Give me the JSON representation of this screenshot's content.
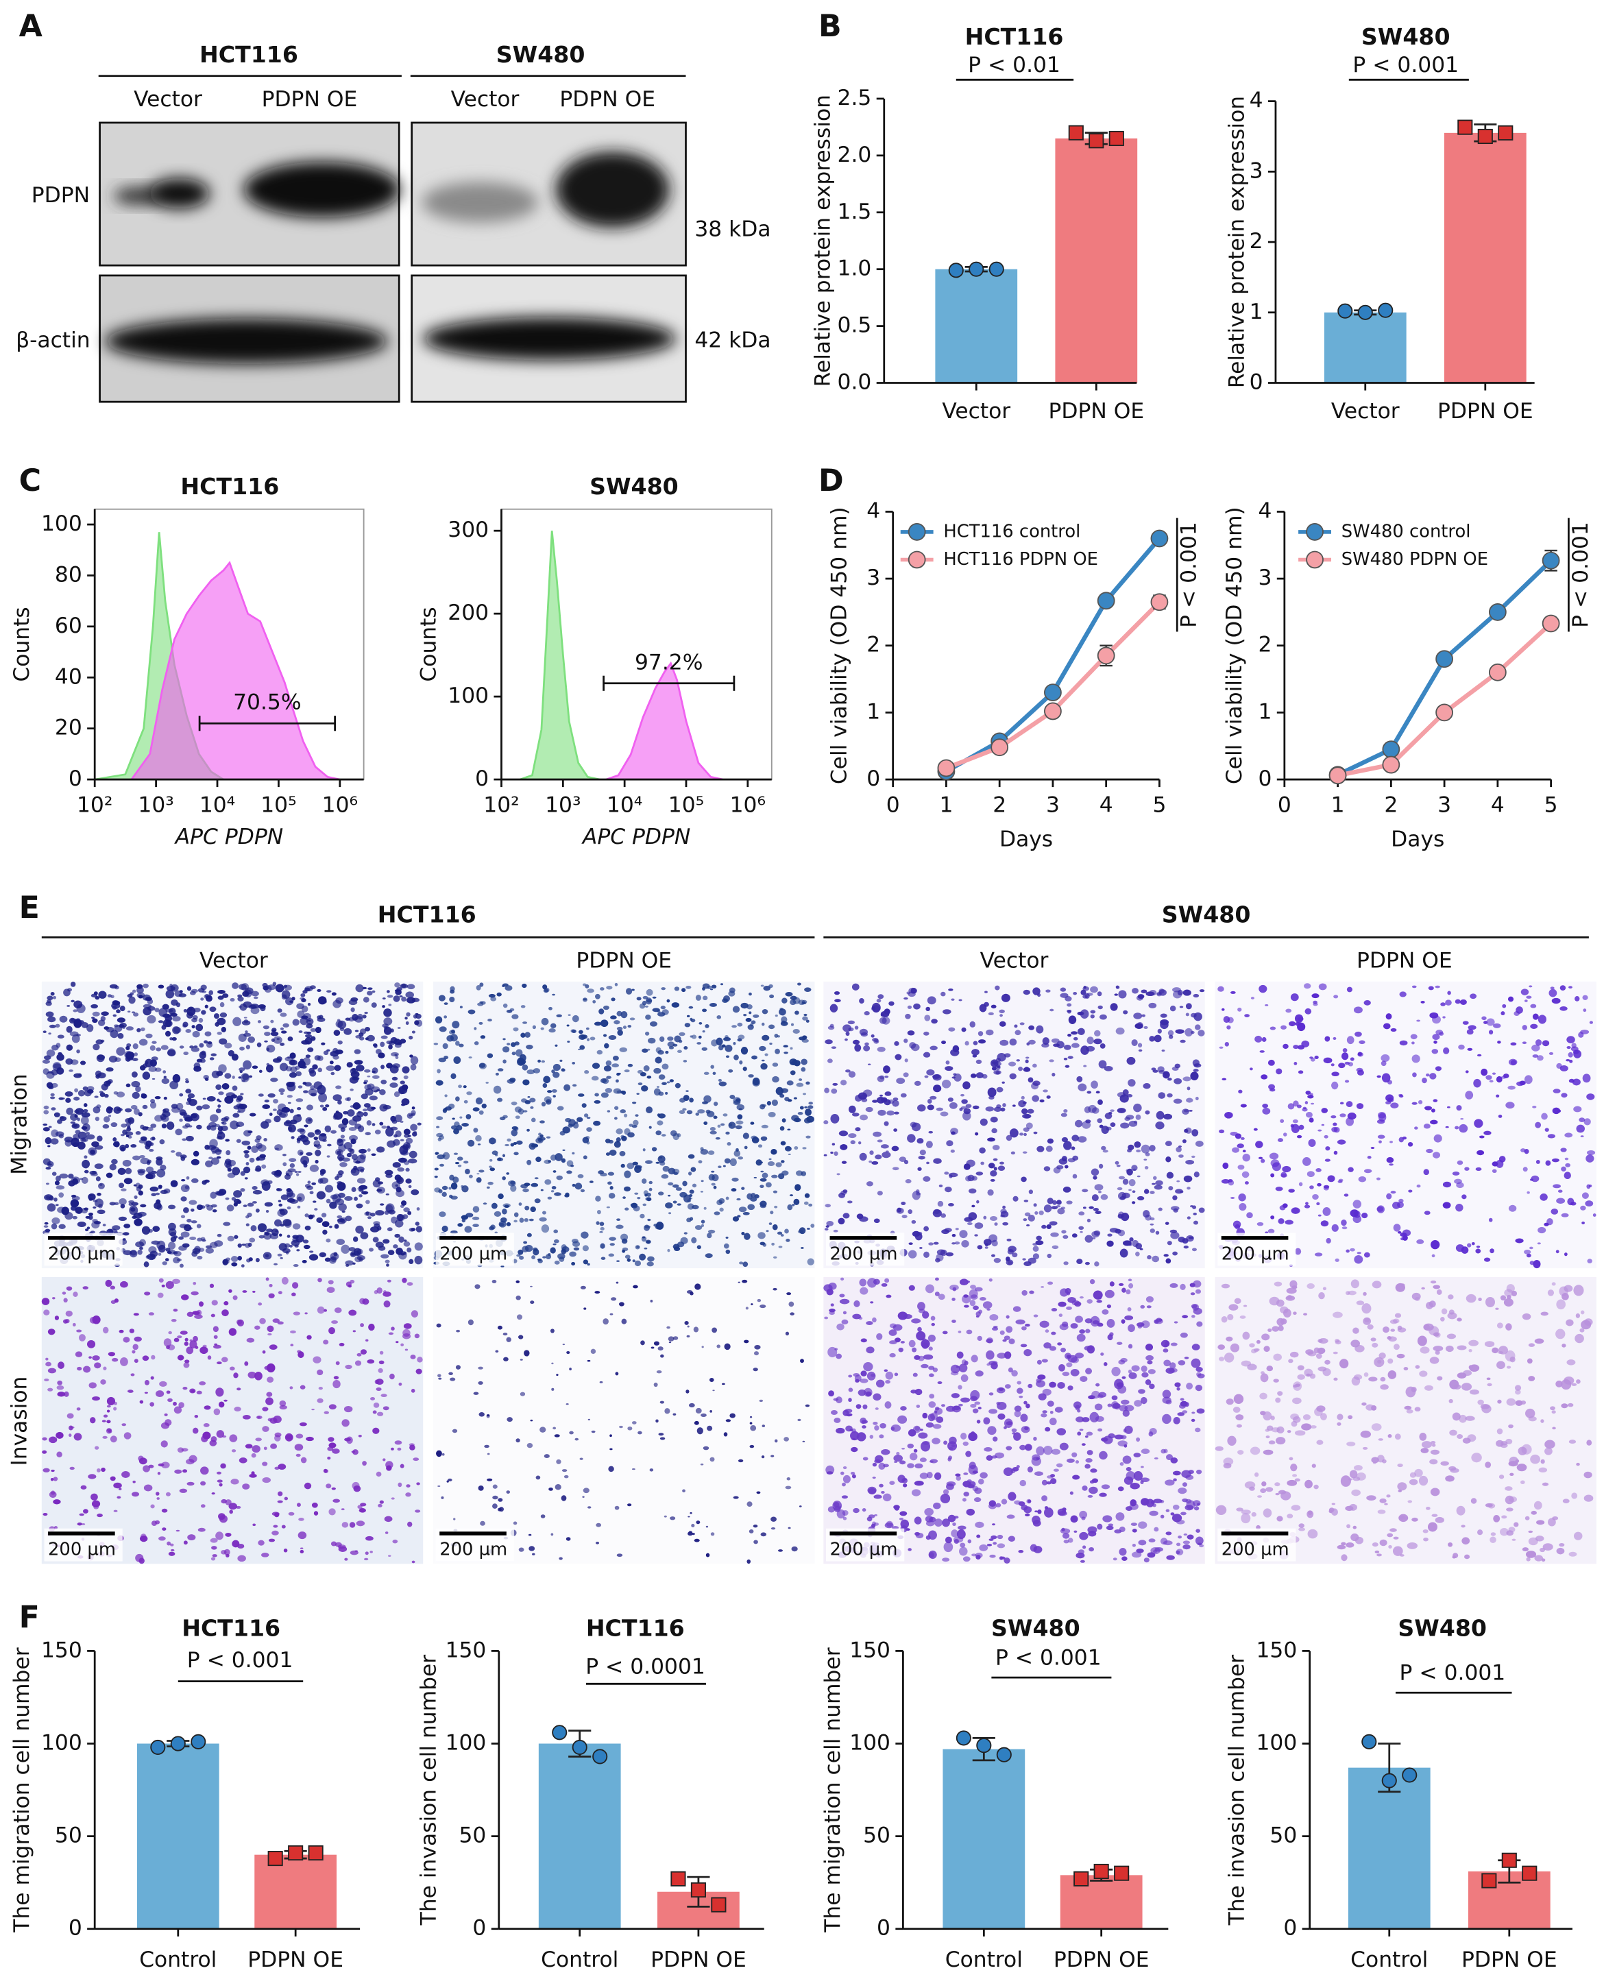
{
  "panels": [
    "A",
    "B",
    "C",
    "D",
    "E",
    "F"
  ],
  "western_blot": {
    "cell_lines": [
      "HCT116",
      "SW480"
    ],
    "lanes": [
      "Vector",
      "PDPN OE"
    ],
    "proteins": [
      "PDPN",
      "β-actin"
    ],
    "sizes": [
      "38 kDa",
      "42 kDa"
    ]
  },
  "microscopy": {
    "cell_lines": [
      "HCT116",
      "SW480"
    ],
    "conditions": [
      "Vector",
      "PDPN OE"
    ],
    "assays": [
      "Migration",
      "Invasion"
    ],
    "scale_bar": "200 µm"
  },
  "chart_data": [
    {
      "type": "bar",
      "title": "HCT116",
      "annotation": "P < 0.01",
      "y_label": "Relative protein expression",
      "categories": [
        "Vector",
        "PDPN OE"
      ],
      "values": [
        1.0,
        2.15
      ],
      "errors": [
        0.02,
        0.05
      ],
      "points": [
        [
          0.99,
          1.0,
          1.0
        ],
        [
          2.2,
          2.13,
          2.15
        ]
      ],
      "colors": [
        "#6aaed6",
        "#ef7b7f"
      ],
      "marker_colors": [
        "#2f7fc1",
        "#d8312f"
      ],
      "ylim": [
        0,
        2.5
      ],
      "yticks": [
        {
          "value": 0,
          "label": "0.0"
        },
        0.5,
        {
          "value": 1,
          "label": "1.0"
        },
        1.5,
        {
          "value": 2,
          "label": "2.0"
        },
        2.5
      ]
    },
    {
      "type": "bar",
      "title": "SW480",
      "annotation": "P < 0.001",
      "y_label": "Relative protein expression",
      "categories": [
        "Vector",
        "PDPN OE"
      ],
      "values": [
        1.0,
        3.55
      ],
      "errors": [
        0.03,
        0.12
      ],
      "points": [
        [
          1.02,
          1.0,
          1.03
        ],
        [
          3.63,
          3.5,
          3.55
        ]
      ],
      "colors": [
        "#6aaed6",
        "#ef7b7f"
      ],
      "marker_colors": [
        "#2f7fc1",
        "#d8312f"
      ],
      "ylim": [
        0,
        4
      ],
      "yticks": [
        0,
        1,
        2,
        3,
        4
      ]
    },
    {
      "type": "histogram",
      "title": "HCT116",
      "x_label": "APC PDPN",
      "y_label": "Counts",
      "xscale": "log",
      "series": [
        {
          "color": "#7ee07e",
          "x": [
            100,
            316,
            631,
            891,
            1122,
            1413,
            1995,
            3162,
            5012,
            7943,
            12589
          ],
          "values": [
            0,
            2,
            20,
            60,
            97,
            70,
            45,
            25,
            10,
            3,
            0
          ]
        },
        {
          "color": "#f060f0",
          "x": [
            398,
            794,
            1259,
            1995,
            3162,
            5012,
            7943,
            12589,
            15849,
            22387,
            31623,
            50119,
            79433,
            125893,
            158489,
            251189,
            398107,
            630957,
            1000000
          ],
          "values": [
            0,
            10,
            35,
            55,
            65,
            72,
            78,
            82,
            85,
            75,
            65,
            62,
            50,
            38,
            30,
            15,
            5,
            1,
            0
          ]
        }
      ],
      "gate": {
        "label": "70.5%",
        "x": [
          5130,
          830000
        ],
        "y": 22
      },
      "xlim": [
        100,
        2450000
      ],
      "ylim": [
        0,
        106
      ],
      "xticks": [
        {
          "value": 100,
          "label": "10²"
        },
        {
          "value": 1000,
          "label": "10³"
        },
        {
          "value": 10000,
          "label": "10⁴"
        },
        {
          "value": 100000,
          "label": "10⁵"
        },
        {
          "value": 1000000,
          "label": "10⁶"
        }
      ],
      "yticks": [
        0,
        20,
        40,
        60,
        80,
        100
      ]
    },
    {
      "type": "histogram",
      "title": "SW480",
      "x_label": "APC PDPN",
      "y_label": "Counts",
      "xscale": "log",
      "series": [
        {
          "color": "#7ee07e",
          "x": [
            200,
            316,
            447,
            562,
            661,
            794,
            1000,
            1259,
            1778,
            2512,
            3981
          ],
          "values": [
            0,
            5,
            60,
            200,
            300,
            240,
            150,
            70,
            20,
            3,
            0
          ]
        },
        {
          "color": "#f060f0",
          "x": [
            5012,
            7943,
            12589,
            19953,
            31623,
            44668,
            56234,
            70795,
            100000,
            158489,
            251189,
            398107
          ],
          "values": [
            0,
            5,
            30,
            75,
            110,
            130,
            140,
            120,
            70,
            20,
            3,
            0
          ]
        }
      ],
      "gate": {
        "label": "97.2%",
        "x": [
          4570,
          600000
        ],
        "y": 116
      },
      "xlim": [
        100,
        2450000
      ],
      "ylim": [
        0,
        326
      ],
      "xticks": [
        {
          "value": 100,
          "label": "10²"
        },
        {
          "value": 1000,
          "label": "10³"
        },
        {
          "value": 10000,
          "label": "10⁴"
        },
        {
          "value": 100000,
          "label": "10⁵"
        },
        {
          "value": 1000000,
          "label": "10⁶"
        }
      ],
      "yticks": [
        0,
        100,
        200,
        300
      ]
    },
    {
      "type": "line",
      "x_label": "Days",
      "y_label": "Cell viability (OD 450 nm)",
      "annotation": "P < 0.001",
      "legend": "upper left",
      "x": [
        1,
        2,
        3,
        4,
        5
      ],
      "series": [
        {
          "name": "HCT116 control",
          "color": "#3a86c2",
          "values": [
            0.12,
            0.57,
            1.3,
            2.67,
            3.6
          ],
          "errors": [
            0.02,
            0.03,
            0.05,
            0.04,
            0.04
          ]
        },
        {
          "name": "HCT116 PDPN OE",
          "color": "#f4a0a6",
          "values": [
            0.17,
            0.48,
            1.02,
            1.85,
            2.65
          ],
          "errors": [
            0.02,
            0.03,
            0.05,
            0.15,
            0.1
          ]
        }
      ],
      "xlim": [
        0,
        5
      ],
      "ylim": [
        0,
        4
      ],
      "xticks": [
        0,
        1,
        2,
        3,
        4,
        5
      ],
      "yticks": [
        0,
        1,
        2,
        3,
        4
      ]
    },
    {
      "type": "line",
      "x_label": "Days",
      "y_label": "Cell viability (OD 450 nm)",
      "annotation": "P < 0.001",
      "legend": "upper left",
      "x": [
        1,
        2,
        3,
        4,
        5
      ],
      "series": [
        {
          "name": "SW480 control",
          "color": "#3a86c2",
          "values": [
            0.07,
            0.45,
            1.8,
            2.5,
            3.27
          ],
          "errors": [
            0.02,
            0.03,
            0.05,
            0.04,
            0.15
          ]
        },
        {
          "name": "SW480 PDPN OE",
          "color": "#f4a0a6",
          "values": [
            0.06,
            0.22,
            1.0,
            1.6,
            2.33
          ],
          "errors": [
            0.02,
            0.03,
            0.04,
            0.04,
            0.04
          ]
        }
      ],
      "xlim": [
        0,
        5
      ],
      "ylim": [
        0,
        4
      ],
      "xticks": [
        0,
        1,
        2,
        3,
        4,
        5
      ],
      "yticks": [
        0,
        1,
        2,
        3,
        4
      ]
    },
    {
      "type": "bar",
      "title": "HCT116",
      "annotation": "P < 0.001",
      "y_label": "The migration cell number",
      "categories": [
        "Control",
        "PDPN OE"
      ],
      "values": [
        100,
        40
      ],
      "errors": [
        1.5,
        2
      ],
      "points": [
        [
          98,
          100,
          101
        ],
        [
          38,
          41,
          41
        ]
      ],
      "colors": [
        "#6aaed6",
        "#ef7b7f"
      ],
      "marker_colors": [
        "#2f7fc1",
        "#d8312f"
      ],
      "ylim": [
        0,
        150
      ],
      "yticks": [
        0,
        50,
        100,
        150
      ]
    },
    {
      "type": "bar",
      "title": "HCT116",
      "annotation": "P < 0.0001",
      "y_label": "The invasion cell number",
      "categories": [
        "Control",
        "PDPN OE"
      ],
      "values": [
        100,
        20
      ],
      "errors": [
        7,
        8
      ],
      "points": [
        [
          106,
          98,
          93
        ],
        [
          27,
          21,
          13
        ]
      ],
      "colors": [
        "#6aaed6",
        "#ef7b7f"
      ],
      "marker_colors": [
        "#2f7fc1",
        "#d8312f"
      ],
      "ylim": [
        0,
        150
      ],
      "yticks": [
        0,
        50,
        100,
        150
      ]
    },
    {
      "type": "bar",
      "title": "SW480",
      "annotation": "P < 0.001",
      "y_label": "The migration cell number",
      "categories": [
        "Control",
        "PDPN OE"
      ],
      "values": [
        97,
        29
      ],
      "errors": [
        6,
        3
      ],
      "points": [
        [
          103,
          99,
          94
        ],
        [
          27,
          31,
          30
        ]
      ],
      "colors": [
        "#6aaed6",
        "#ef7b7f"
      ],
      "marker_colors": [
        "#2f7fc1",
        "#d8312f"
      ],
      "ylim": [
        0,
        150
      ],
      "yticks": [
        0,
        50,
        100,
        150
      ]
    },
    {
      "type": "bar",
      "title": "SW480",
      "annotation": "P < 0.001",
      "y_label": "The invasion cell number",
      "categories": [
        "Control",
        "PDPN OE"
      ],
      "values": [
        87,
        31
      ],
      "errors": [
        13,
        6
      ],
      "points": [
        [
          101,
          80,
          83
        ],
        [
          26,
          37,
          30
        ]
      ],
      "colors": [
        "#6aaed6",
        "#ef7b7f"
      ],
      "marker_colors": [
        "#2f7fc1",
        "#d8312f"
      ],
      "ylim": [
        0,
        150
      ],
      "yticks": [
        0,
        50,
        100,
        150
      ]
    }
  ]
}
